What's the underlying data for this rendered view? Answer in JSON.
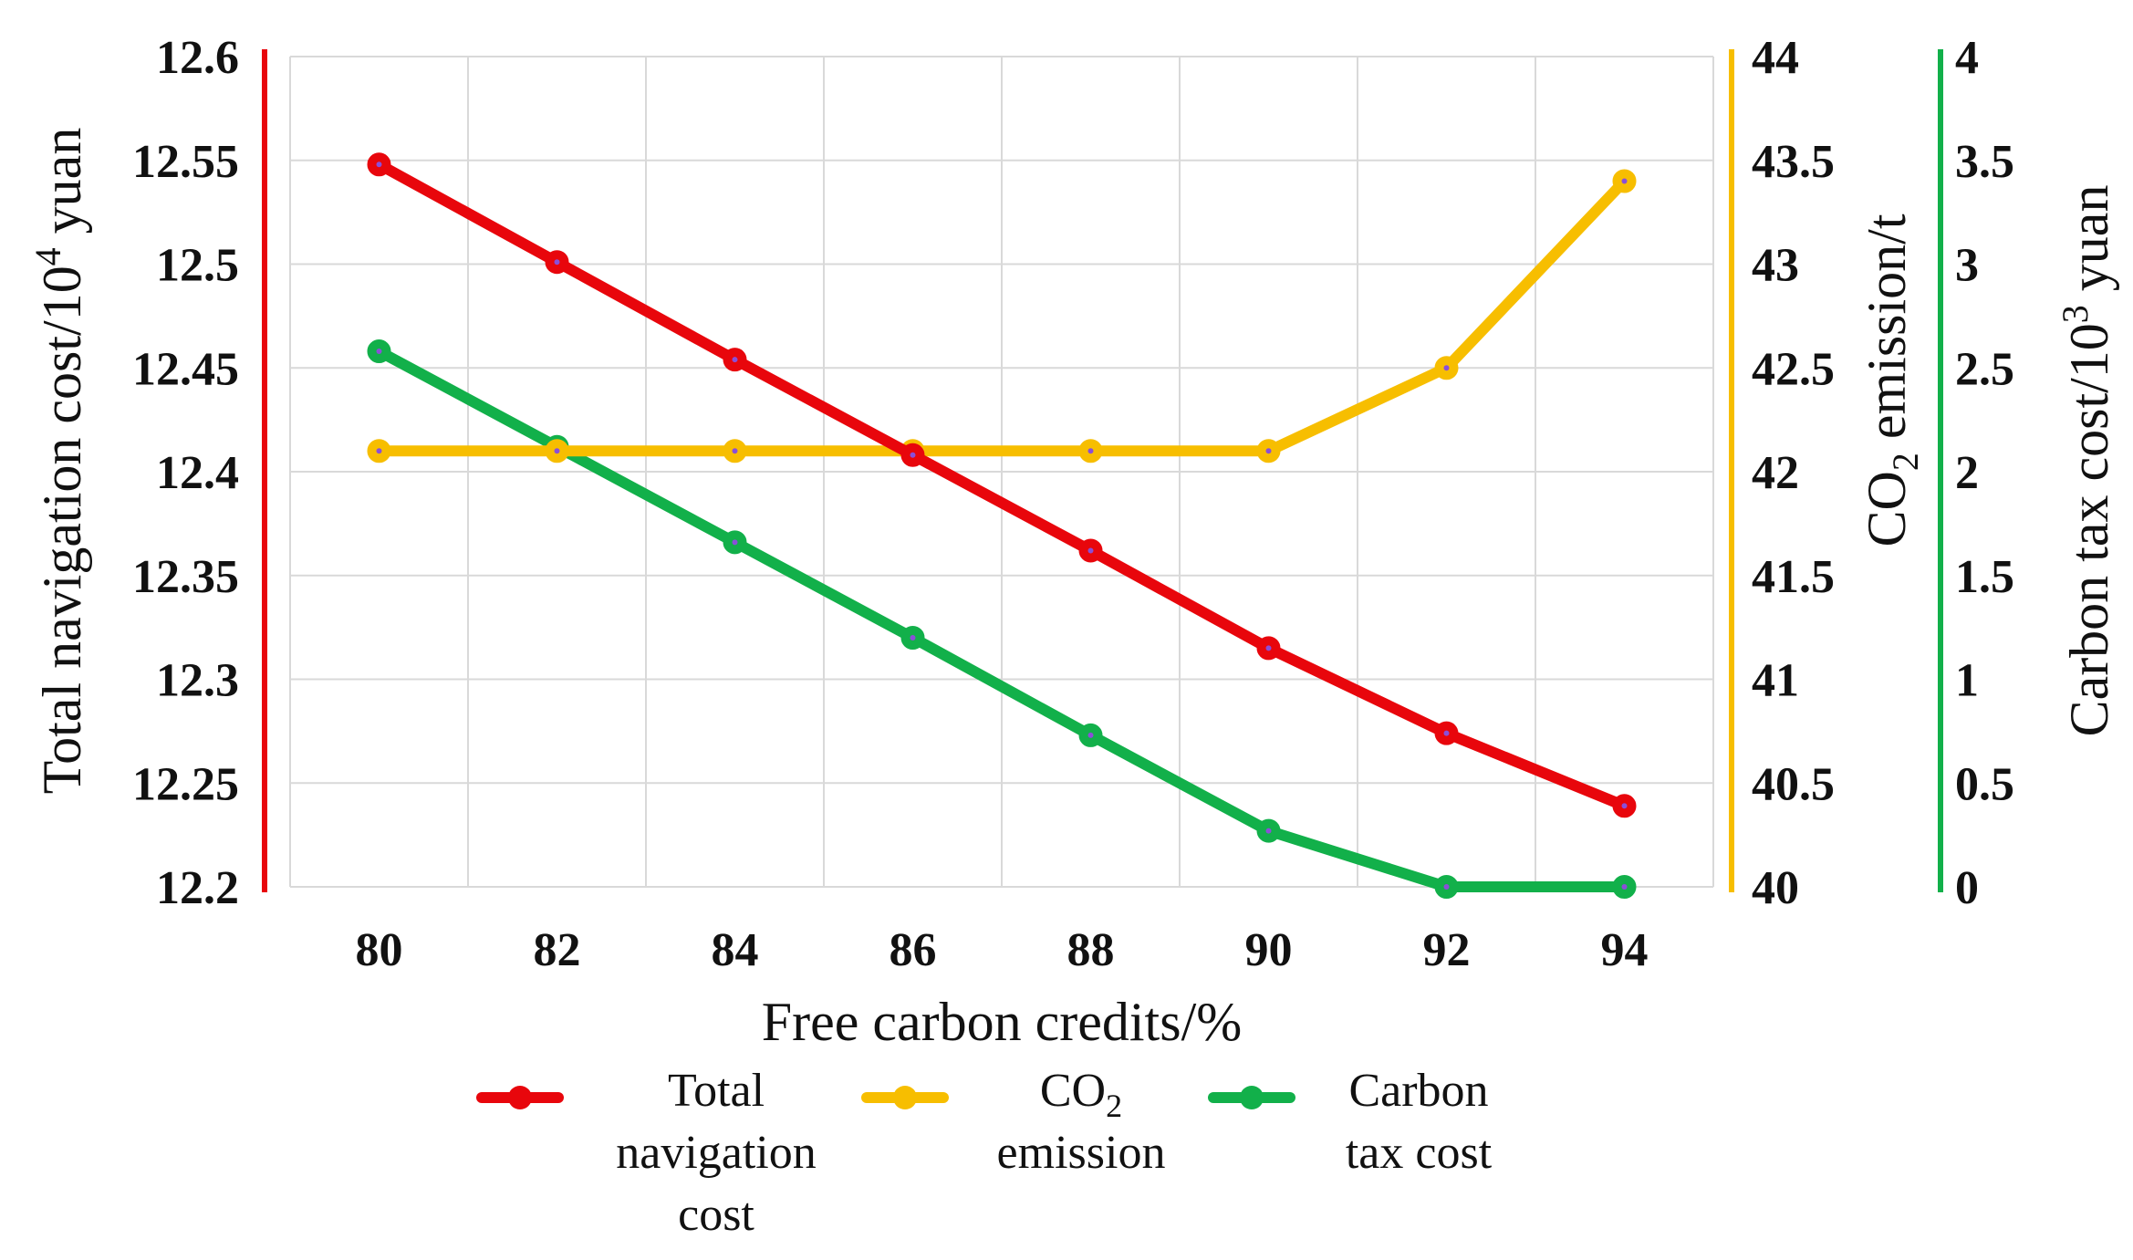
{
  "chart_data": {
    "type": "line",
    "x": [
      80,
      82,
      84,
      86,
      88,
      90,
      92,
      94
    ],
    "xlabel": "Free carbon credits/%",
    "axes": {
      "left": {
        "label_main": "Total navigation cost/10",
        "label_sup": "4",
        "label_end": " yuan",
        "ylim": [
          12.2,
          12.6
        ],
        "ticks": [
          "12.2",
          "12.25",
          "12.3",
          "12.35",
          "12.4",
          "12.45",
          "12.5",
          "12.55",
          "12.6"
        ],
        "color": "#e8060c"
      },
      "right1": {
        "label_main": "CO",
        "label_sub": "2",
        "label_end": " emission/t",
        "ylim": [
          40,
          44
        ],
        "ticks": [
          "40",
          "40.5",
          "41",
          "41.5",
          "42",
          "42.5",
          "43",
          "43.5",
          "44"
        ],
        "color": "#f7be00"
      },
      "right2": {
        "label_main": "Carbon tax cost/10",
        "label_sup": "3",
        "label_end": " yuan",
        "ylim": [
          0,
          4
        ],
        "ticks": [
          "0",
          "0.5",
          "1",
          "1.5",
          "2",
          "2.5",
          "3",
          "3.5",
          "4"
        ],
        "color": "#12b04a"
      }
    },
    "series": [
      {
        "name": "Total navigation cost",
        "legend_lines": [
          "Total",
          "navigation",
          "cost"
        ],
        "axis": "left",
        "color": "#e8060c",
        "values": [
          12.548,
          12.501,
          12.454,
          12.408,
          12.362,
          12.315,
          12.274,
          12.239
        ]
      },
      {
        "name": "CO2 emission",
        "legend_lines": [
          "CO|2",
          "emission"
        ],
        "axis": "right1",
        "color": "#f7be00",
        "values": [
          42.1,
          42.1,
          42.1,
          42.1,
          42.1,
          42.1,
          42.5,
          43.4
        ]
      },
      {
        "name": "Carbon tax cost",
        "legend_lines": [
          "Carbon",
          "tax cost"
        ],
        "axis": "right2",
        "color": "#12b04a",
        "values": [
          2.58,
          2.12,
          1.66,
          1.2,
          0.73,
          0.27,
          0.0,
          0.0
        ]
      }
    ],
    "grid": true,
    "legend_position": "bottom-center"
  }
}
